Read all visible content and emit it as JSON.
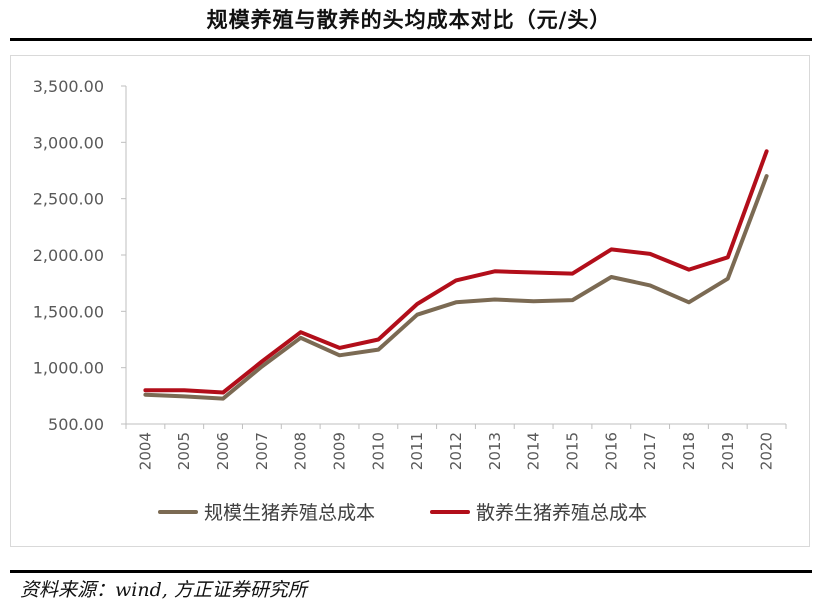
{
  "header": {
    "title": "规模养殖与散养的头均成本对比（元/头）"
  },
  "footer": {
    "source": "资料来源：wind, 方正证券研究所"
  },
  "chart_data": {
    "type": "line",
    "title": "规模养殖与散养的头均成本对比（元/头）",
    "xlabel": "",
    "ylabel": "",
    "ylim": [
      500,
      3500
    ],
    "yticks": [
      "500.00",
      "1,000.00",
      "1,500.00",
      "2,000.00",
      "2,500.00",
      "3,000.00",
      "3,500.00"
    ],
    "ytick_values": [
      500,
      1000,
      1500,
      2000,
      2500,
      3000,
      3500
    ],
    "x": [
      "2004",
      "2005",
      "2006",
      "2007",
      "2008",
      "2009",
      "2010",
      "2011",
      "2012",
      "2013",
      "2014",
      "2015",
      "2016",
      "2017",
      "2018",
      "2019",
      "2020"
    ],
    "grid": false,
    "legend_position": "bottom",
    "series": [
      {
        "name": "规模生猪养殖总成本",
        "color": "#7b6a53",
        "values": [
          760,
          745,
          725,
          1010,
          1265,
          1110,
          1160,
          1470,
          1580,
          1605,
          1590,
          1600,
          1805,
          1730,
          1580,
          1790,
          2700
        ]
      },
      {
        "name": "散养生猪养殖总成本",
        "color": "#b20e1a",
        "values": [
          800,
          800,
          780,
          1055,
          1315,
          1175,
          1250,
          1565,
          1775,
          1855,
          1845,
          1835,
          2050,
          2010,
          1870,
          1980,
          2920
        ]
      }
    ]
  }
}
